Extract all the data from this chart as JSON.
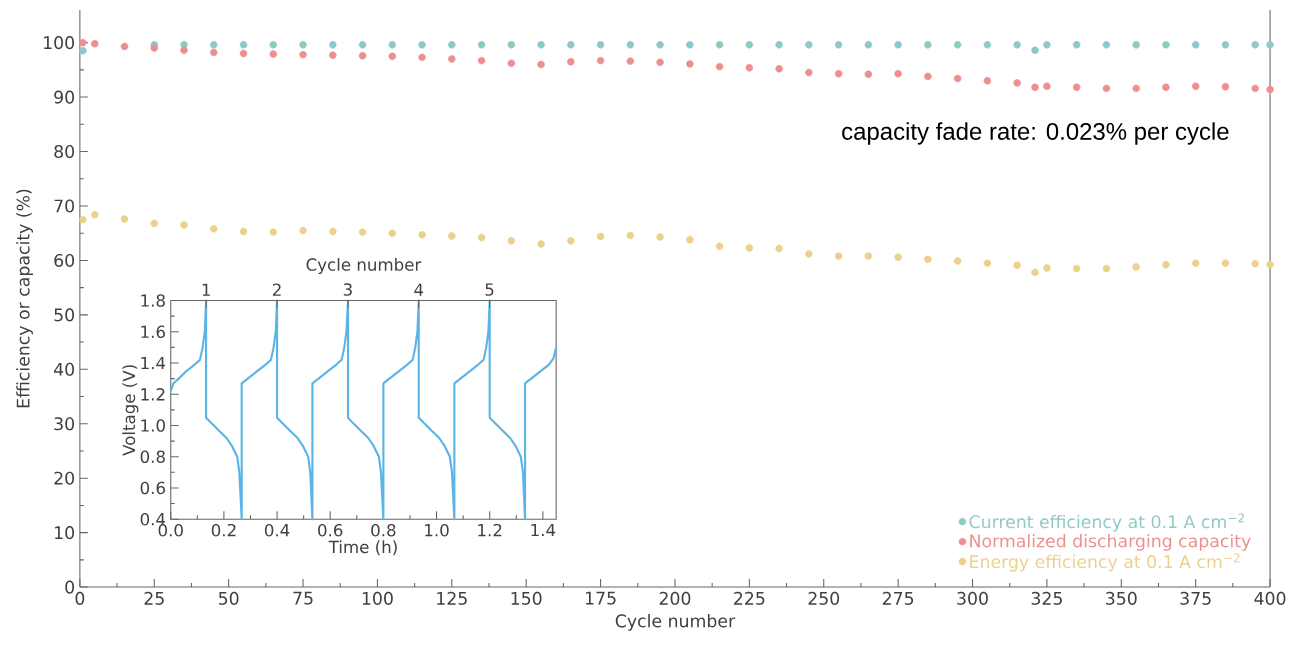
{
  "chart_data": [
    {
      "type": "scatter",
      "xlabel": "Cycle number",
      "ylabel": "Efficiency or capacity (%)",
      "xlim": [
        0,
        400
      ],
      "ylim": [
        0,
        106
      ],
      "xticks": [
        0,
        25,
        50,
        75,
        100,
        125,
        150,
        175,
        200,
        225,
        250,
        275,
        300,
        325,
        350,
        375,
        400
      ],
      "yticks": [
        0,
        10,
        20,
        30,
        40,
        50,
        60,
        70,
        80,
        90,
        100
      ],
      "x": [
        1,
        5,
        15,
        25,
        35,
        45,
        55,
        65,
        75,
        85,
        95,
        105,
        115,
        125,
        135,
        145,
        155,
        165,
        175,
        185,
        195,
        205,
        215,
        225,
        235,
        245,
        255,
        265,
        275,
        285,
        295,
        305,
        315,
        321,
        325,
        335,
        345,
        355,
        365,
        375,
        385,
        395,
        400
      ],
      "marker": "circle",
      "legend": "bottom right",
      "annotations": [
        "capacity fade rate: 0.023% per cycle"
      ],
      "series": [
        {
          "name": "Current efficiency at 0.1 A cm$^{−2}$",
          "color": "#8fc9c6",
          "values": [
            98.5,
            null,
            null,
            99.6,
            99.6,
            99.6,
            99.6,
            99.6,
            99.6,
            99.6,
            99.6,
            99.6,
            99.6,
            99.6,
            99.6,
            99.6,
            99.6,
            99.6,
            99.6,
            99.6,
            99.6,
            99.6,
            99.6,
            99.6,
            99.6,
            99.6,
            99.6,
            99.6,
            99.6,
            99.6,
            99.6,
            99.6,
            99.6,
            98.6,
            99.6,
            99.6,
            99.6,
            99.6,
            99.6,
            99.6,
            99.6,
            99.6,
            99.6
          ]
        },
        {
          "name": "Normalized discharging capacity",
          "color": "#ee8e8e",
          "values": [
            100,
            99.8,
            99.3,
            99,
            98.6,
            98.2,
            98,
            97.9,
            97.8,
            97.7,
            97.6,
            97.5,
            97.3,
            97,
            96.7,
            96.2,
            96,
            96.5,
            96.7,
            96.6,
            96.4,
            96.1,
            95.6,
            95.4,
            95.2,
            94.5,
            94.3,
            94.2,
            94.3,
            93.8,
            93.4,
            93,
            92.6,
            91.8,
            92,
            91.8,
            91.6,
            91.6,
            91.8,
            92,
            91.9,
            91.6,
            91.4
          ]
        },
        {
          "name": "Energy efficiency at 0.1 A cm$^{−2}$",
          "color": "#ecd08b",
          "values": [
            67.5,
            68.4,
            67.6,
            66.8,
            66.5,
            65.8,
            65.3,
            65.2,
            65.5,
            65.3,
            65.2,
            65,
            64.7,
            64.5,
            64.2,
            63.6,
            63,
            63.6,
            64.4,
            64.6,
            64.3,
            63.8,
            62.6,
            62.3,
            62.2,
            61.2,
            60.8,
            60.8,
            60.6,
            60.2,
            59.9,
            59.5,
            59.1,
            57.8,
            58.6,
            58.5,
            58.5,
            58.8,
            59.2,
            59.5,
            59.5,
            59.4,
            59.2
          ]
        }
      ]
    },
    {
      "type": "line",
      "xlabel": "Time (h)",
      "ylabel": "Voltage (V)",
      "x2label": "Cycle number",
      "xlim": [
        0,
        1.45
      ],
      "ylim": [
        0.4,
        1.8
      ],
      "xticks": [
        {
          "value": 0,
          "label": "0.0"
        },
        0.2,
        0.4,
        0.6,
        0.8,
        {
          "value": 1,
          "label": "1.0"
        },
        1.2,
        1.4
      ],
      "yticks": [
        0.4,
        0.6,
        0.8,
        {
          "value": 1,
          "label": "1.0"
        },
        1.2,
        1.4,
        1.6,
        1.8
      ],
      "x2lim": [
        0.5,
        5.94
      ],
      "x2ticks": [
        1,
        2,
        3,
        4,
        5
      ],
      "line_style": "solid",
      "series": [
        {
          "color": "#5bb4e5",
          "x": [
            0,
            0.01,
            0.03,
            0.06,
            0.09,
            0.11,
            0.12,
            0.128,
            0.133,
            0.133,
            0.15,
            0.18,
            0.21,
            0.23,
            0.25,
            0.258,
            0.267,
            0.267,
            0.297,
            0.327,
            0.357,
            0.377,
            0.387,
            0.395,
            0.4,
            0.4,
            0.417,
            0.447,
            0.477,
            0.497,
            0.517,
            0.525,
            0.533,
            0.533,
            0.563,
            0.593,
            0.623,
            0.643,
            0.653,
            0.661,
            0.667,
            0.667,
            0.683,
            0.713,
            0.743,
            0.763,
            0.783,
            0.791,
            0.8,
            0.8,
            0.83,
            0.86,
            0.89,
            0.91,
            0.92,
            0.928,
            0.933,
            0.933,
            0.95,
            0.98,
            1.01,
            1.03,
            1.05,
            1.058,
            1.067,
            1.067,
            1.097,
            1.127,
            1.157,
            1.177,
            1.187,
            1.195,
            1.2,
            1.2,
            1.217,
            1.247,
            1.277,
            1.297,
            1.317,
            1.325,
            1.333,
            1.333,
            1.363,
            1.393,
            1.423,
            1.44,
            1.45
          ],
          "values": [
            1.22,
            1.27,
            1.3,
            1.35,
            1.39,
            1.42,
            1.5,
            1.6,
            1.8,
            1.05,
            1.02,
            0.97,
            0.92,
            0.87,
            0.8,
            0.7,
            0.4,
            1.27,
            1.31,
            1.35,
            1.39,
            1.42,
            1.5,
            1.6,
            1.8,
            1.05,
            1.02,
            0.97,
            0.92,
            0.87,
            0.8,
            0.7,
            0.4,
            1.27,
            1.31,
            1.35,
            1.39,
            1.42,
            1.5,
            1.6,
            1.8,
            1.05,
            1.02,
            0.97,
            0.92,
            0.87,
            0.8,
            0.7,
            0.4,
            1.27,
            1.31,
            1.35,
            1.39,
            1.42,
            1.5,
            1.6,
            1.8,
            1.05,
            1.02,
            0.97,
            0.92,
            0.87,
            0.8,
            0.7,
            0.4,
            1.27,
            1.31,
            1.35,
            1.39,
            1.42,
            1.5,
            1.6,
            1.8,
            1.05,
            1.02,
            0.97,
            0.92,
            0.87,
            0.8,
            0.7,
            0.4,
            1.27,
            1.31,
            1.35,
            1.39,
            1.43,
            1.5
          ]
        }
      ]
    }
  ]
}
